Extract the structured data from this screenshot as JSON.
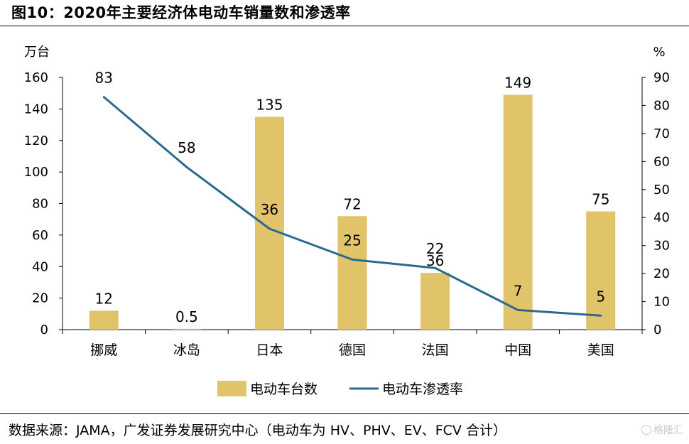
{
  "title": "图10：2020年主要经济体电动车销量数和渗透率",
  "source_note": "数据来源：JAMA，广发证券发展研究中心（电动车为 HV、PHV、EV、FCV 合计）",
  "watermark": "格隆汇",
  "chart_data": {
    "type": "bar+line",
    "categories": [
      "挪威",
      "冰岛",
      "日本",
      "德国",
      "法国",
      "中国",
      "美国"
    ],
    "series": [
      {
        "name": "电动车台数",
        "type": "bar",
        "axis": "left",
        "color": "#e1c46a",
        "values": [
          12,
          0.5,
          135,
          72,
          36,
          149,
          75
        ],
        "labels": [
          "12",
          "0.5",
          "135",
          "72",
          "36",
          "149",
          "75"
        ]
      },
      {
        "name": "电动车渗透率",
        "type": "line",
        "axis": "right",
        "color": "#2a6a8e",
        "values": [
          83,
          58,
          36,
          25,
          22,
          7,
          5
        ],
        "labels": [
          "83",
          "58",
          "36",
          "25",
          "22",
          "7",
          "5"
        ]
      }
    ],
    "y_left": {
      "unit_label": "万台",
      "lim": [
        0,
        160
      ],
      "ticks": [
        0,
        20,
        40,
        60,
        80,
        100,
        120,
        140,
        160
      ]
    },
    "y_right": {
      "unit_label": "%",
      "lim": [
        0,
        90
      ],
      "ticks": [
        0,
        10,
        20,
        30,
        40,
        50,
        60,
        70,
        80,
        90
      ]
    },
    "legend": {
      "placement": "bottom"
    }
  }
}
